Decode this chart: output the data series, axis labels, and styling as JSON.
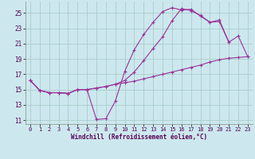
{
  "xlabel": "Windchill (Refroidissement éolien,°C)",
  "background_color": "#cce8ee",
  "grid_color": "#aacccc",
  "line_color": "#993399",
  "xlim": [
    -0.5,
    23.5
  ],
  "ylim": [
    10.5,
    26.5
  ],
  "yticks": [
    11,
    13,
    15,
    17,
    19,
    21,
    23,
    25
  ],
  "xticks": [
    0,
    1,
    2,
    3,
    4,
    5,
    6,
    7,
    8,
    9,
    10,
    11,
    12,
    13,
    14,
    15,
    16,
    17,
    18,
    19,
    20,
    21,
    22,
    23
  ],
  "line1_x": [
    0,
    1,
    2,
    3,
    4,
    5,
    6,
    7,
    8,
    9,
    10,
    11,
    12,
    13,
    14,
    15,
    16,
    17,
    18,
    19,
    20,
    21
  ],
  "line1_y": [
    16.2,
    14.9,
    14.6,
    14.6,
    14.5,
    15.0,
    15.0,
    11.1,
    11.2,
    13.5,
    17.4,
    20.2,
    22.2,
    23.8,
    25.2,
    25.7,
    25.4,
    25.5,
    24.6,
    23.8,
    23.9,
    21.2
  ],
  "line2_x": [
    0,
    1,
    2,
    3,
    4,
    5,
    6,
    7,
    8,
    9,
    10,
    11,
    12,
    13,
    14,
    15,
    16,
    17,
    18,
    19,
    20,
    21,
    22,
    23
  ],
  "line2_y": [
    16.2,
    14.9,
    14.6,
    14.6,
    14.5,
    15.0,
    15.0,
    15.2,
    15.4,
    15.7,
    15.9,
    16.1,
    16.4,
    16.7,
    17.0,
    17.3,
    17.6,
    17.9,
    18.2,
    18.6,
    18.9,
    19.1,
    19.2,
    19.3
  ],
  "line3_x": [
    0,
    1,
    2,
    3,
    4,
    5,
    6,
    7,
    8,
    9,
    10,
    11,
    12,
    13,
    14,
    15,
    16,
    17,
    18,
    19,
    20,
    21,
    22,
    23
  ],
  "line3_y": [
    16.2,
    14.9,
    14.6,
    14.6,
    14.5,
    15.0,
    15.0,
    15.2,
    15.4,
    15.7,
    16.2,
    17.3,
    18.8,
    20.4,
    21.9,
    24.0,
    25.6,
    25.3,
    24.7,
    23.8,
    24.1,
    21.2,
    22.0,
    19.3
  ]
}
